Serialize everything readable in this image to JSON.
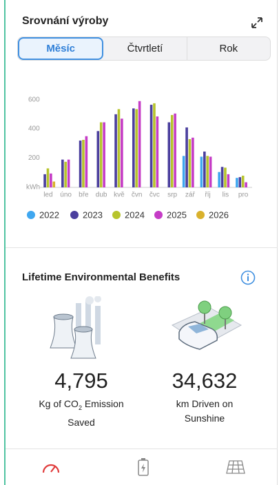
{
  "header": {
    "title": "Srovnání výroby"
  },
  "tabs": [
    "Měsíc",
    "Čtvrtletí",
    "Rok"
  ],
  "chart_data": {
    "type": "bar",
    "ylabel": "kWh",
    "categories": [
      "led",
      "úno",
      "bře",
      "dub",
      "kvě",
      "čvn",
      "čvc",
      "srp",
      "zář",
      "říj",
      "lis",
      "pro"
    ],
    "series": [
      {
        "name": "2022",
        "color": "#3fa7f0",
        "values": [
          null,
          null,
          null,
          null,
          null,
          null,
          null,
          null,
          215,
          210,
          105,
          65
        ]
      },
      {
        "name": "2023",
        "color": "#4b3f9e",
        "values": [
          90,
          190,
          320,
          385,
          500,
          540,
          565,
          445,
          410,
          245,
          140,
          70
        ]
      },
      {
        "name": "2024",
        "color": "#b7c42c",
        "values": [
          130,
          175,
          325,
          445,
          535,
          535,
          575,
          495,
          330,
          215,
          135,
          80
        ]
      },
      {
        "name": "2025",
        "color": "#c53cc6",
        "values": [
          95,
          190,
          350,
          445,
          470,
          590,
          485,
          505,
          340,
          210,
          90,
          35
        ]
      },
      {
        "name": "2026",
        "color": "#d9b12c",
        "values": [
          40,
          null,
          null,
          null,
          null,
          null,
          null,
          null,
          null,
          null,
          null,
          null
        ]
      }
    ],
    "ylim": [
      0,
      650
    ],
    "yticks": [
      200,
      400,
      600
    ],
    "grid": false
  },
  "benefits": {
    "title": "Lifetime Environmental Benefits",
    "items": [
      {
        "value": "4,795",
        "caption": [
          "Kg of CO",
          "2",
          " Emission"
        ],
        "caption_line2": "Saved"
      },
      {
        "value": "34,632",
        "caption": [
          "km Driven on"
        ],
        "caption_line2": "Sunshine"
      }
    ]
  }
}
